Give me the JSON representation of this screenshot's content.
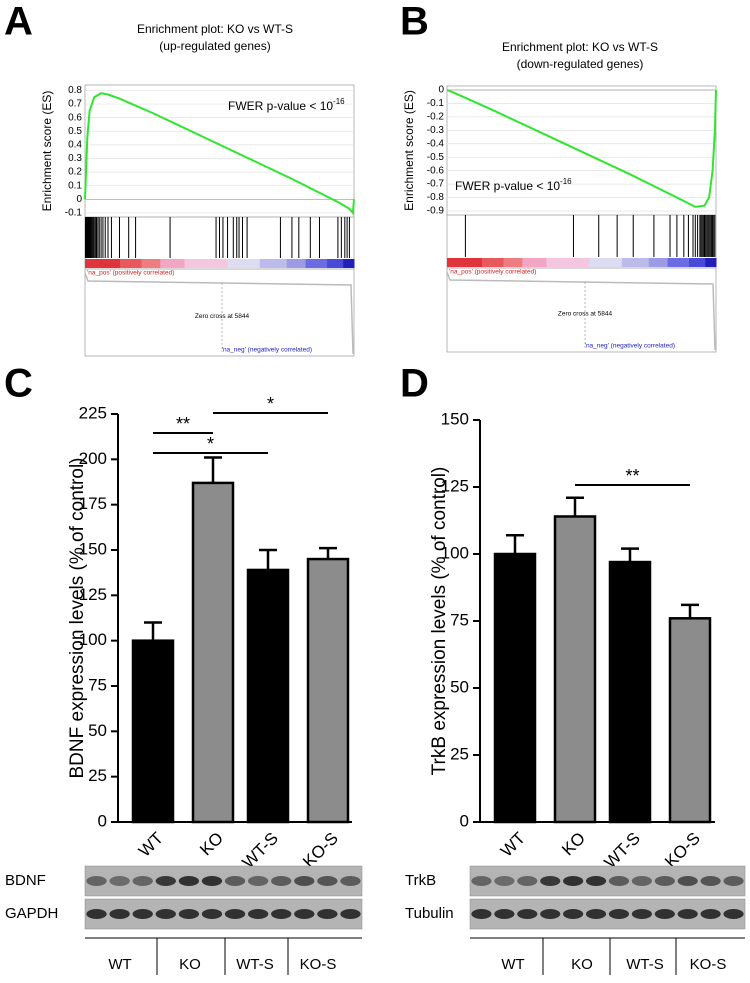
{
  "chart_data": [
    {
      "type": "gsea",
      "panel": "A",
      "title": "Enrichment plot: KO vs WT-S",
      "subtitle": "(up-regulated genes)",
      "y_label": "Enrichment score (ES)",
      "annotation": "FWER p-value < 10",
      "annotation_sup": "-16",
      "xlim": [
        0,
        11700
      ],
      "ylim": [
        -0.13,
        0.84
      ],
      "yticks": [
        0.8,
        0.7,
        0.6,
        0.5,
        0.4,
        0.3,
        0.2,
        0.1,
        0,
        -0.1
      ],
      "grid": true,
      "x": [
        0,
        100,
        200,
        400,
        700,
        1000,
        1500,
        3000,
        5000,
        7000,
        9000,
        11000,
        11500,
        11650,
        11700
      ],
      "series": [
        {
          "color": "#2ee62e",
          "values": [
            0,
            0.45,
            0.65,
            0.75,
            0.78,
            0.77,
            0.74,
            0.63,
            0.47,
            0.31,
            0.15,
            -0.02,
            -0.07,
            -0.1,
            0
          ]
        }
      ],
      "hits": [
        20,
        50,
        80,
        110,
        140,
        170,
        200,
        240,
        280,
        320,
        360,
        400,
        450,
        500,
        560,
        620,
        700,
        780,
        880,
        1000,
        1150,
        1500,
        1900,
        2200,
        3700,
        5700,
        5850,
        6000,
        6200,
        6450,
        6600,
        6700,
        6850,
        7050,
        8500,
        9000,
        9300,
        9800,
        10200,
        11000,
        11150,
        11300,
        11400,
        11500
      ],
      "pos_label": "'na_pos' (positively correlated)",
      "zero_cross_label": "Zero cross at 5844",
      "neg_label": "'na_neg' (negatively correlated)"
    },
    {
      "type": "gsea",
      "panel": "B",
      "title": "Enrichment plot: KO vs WT-S",
      "subtitle": "(down-regulated genes)",
      "y_label": "Enrichment score (ES)",
      "annotation": "FWER p-value < 10",
      "annotation_sup": "-16",
      "xlim": [
        0,
        11700
      ],
      "ylim": [
        -0.93,
        0.03
      ],
      "yticks": [
        0,
        -0.1,
        -0.2,
        -0.3,
        -0.4,
        -0.5,
        -0.6,
        -0.7,
        -0.8,
        -0.9
      ],
      "grid": true,
      "x": [
        0,
        300,
        2000,
        4000,
        6000,
        8000,
        10000,
        10800,
        11200,
        11400,
        11550,
        11650,
        11700
      ],
      "series": [
        {
          "color": "#2ee62e",
          "values": [
            0,
            -0.02,
            -0.15,
            -0.31,
            -0.47,
            -0.63,
            -0.8,
            -0.87,
            -0.86,
            -0.8,
            -0.6,
            -0.3,
            0
          ]
        }
      ],
      "hits": [
        800,
        5500,
        6600,
        7400,
        8100,
        9000,
        9700,
        10000,
        10300,
        10500,
        10700,
        10800,
        10900,
        11000,
        11050,
        11100,
        11150,
        11200,
        11250,
        11300,
        11350,
        11400,
        11450,
        11500,
        11550,
        11600,
        11650
      ],
      "pos_label": "'na_pos' (positively correlated)",
      "zero_cross_label": "Zero cross at 5844",
      "neg_label": "'na_neg' (negatively correlated)"
    },
    {
      "type": "bar",
      "panel": "C",
      "y_label": "BDNF expression levels (% of control)",
      "categories": [
        "WT",
        "KO",
        "WT-S",
        "KO-S"
      ],
      "values": [
        100,
        187,
        139,
        145
      ],
      "errors": [
        10,
        14,
        11,
        6
      ],
      "colors": [
        "#000000",
        "#8c8c8c",
        "#000000",
        "#8c8c8c"
      ],
      "ylim": [
        0,
        225
      ],
      "yticks": [
        0,
        25,
        50,
        75,
        100,
        125,
        150,
        175,
        200,
        225
      ],
      "significance": [
        {
          "label": "**",
          "groups": [
            0,
            1
          ]
        },
        {
          "label": "*",
          "groups": [
            0,
            2
          ]
        },
        {
          "label": "*",
          "groups": [
            1,
            3
          ]
        }
      ],
      "blot": {
        "rows": [
          "BDNF",
          "GAPDH"
        ],
        "lanes": [
          "WT",
          "KO",
          "WT-S",
          "KO-S"
        ]
      }
    },
    {
      "type": "bar",
      "panel": "D",
      "y_label": "TrkB expression levels (% of control)",
      "categories": [
        "WT",
        "KO",
        "WT-S",
        "KO-S"
      ],
      "values": [
        100,
        114,
        97,
        76
      ],
      "errors": [
        7,
        7,
        5,
        5
      ],
      "colors": [
        "#000000",
        "#8c8c8c",
        "#000000",
        "#8c8c8c"
      ],
      "ylim": [
        0,
        150
      ],
      "yticks": [
        0,
        25,
        50,
        75,
        100,
        125,
        150
      ],
      "significance": [
        {
          "label": "**",
          "groups": [
            1,
            3
          ]
        }
      ],
      "blot": {
        "rows": [
          "TrkB",
          "Tubulin"
        ],
        "lanes": [
          "WT",
          "KO",
          "WT-S",
          "KO-S"
        ]
      }
    }
  ]
}
